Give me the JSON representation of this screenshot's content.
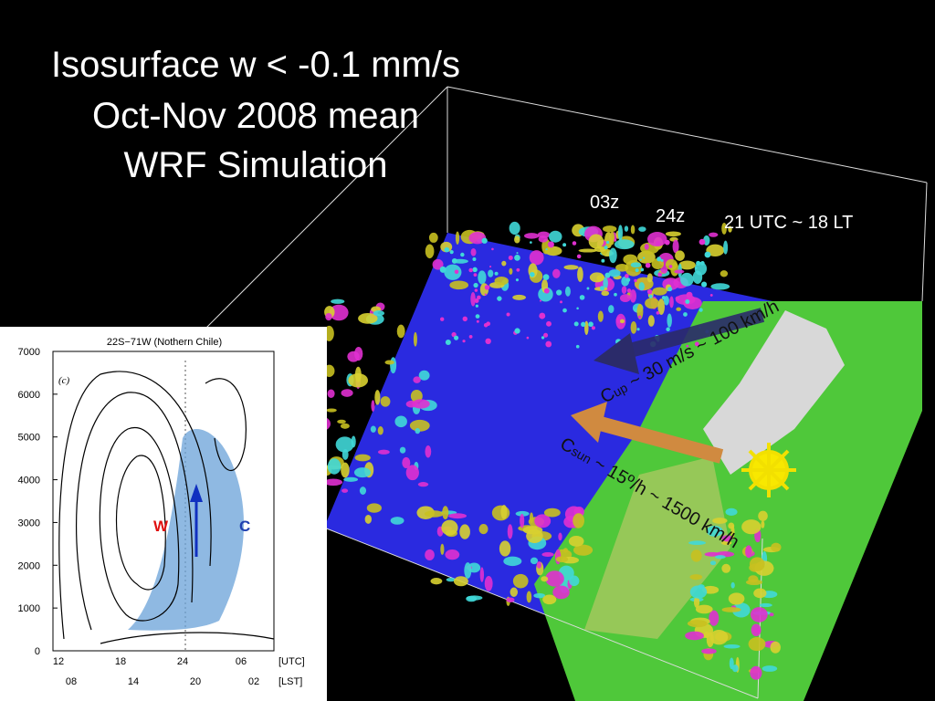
{
  "title": [
    "Isosurface w < -0.1 mm/s",
    "Oct-Nov 2008 mean",
    "WRF Simulation"
  ],
  "labels": {
    "t03": "03z",
    "t24": "24z",
    "utc": "21 UTC ~ 18 LT",
    "cup": {
      "c": "C",
      "sub": "up",
      "rest": " ~ 30 m/s ~ 100 km/h"
    },
    "csun": {
      "c": "C",
      "sub": "sun",
      "rest": " ~ 15º/h ~ 1500 km/h"
    }
  },
  "inset": {
    "title": "22S−71W (Nothern Chile)",
    "panel": "(c)",
    "yticks": [
      "7000",
      "6000",
      "5000",
      "4000",
      "3000",
      "2000",
      "1000",
      "0"
    ],
    "utc_ticks": [
      "12",
      "18",
      "24",
      "06"
    ],
    "utc_label": "[UTC]",
    "lst_ticks": [
      "08",
      "14",
      "20",
      "02"
    ],
    "lst_label": "[LST]",
    "w": "W",
    "c": "C"
  }
}
